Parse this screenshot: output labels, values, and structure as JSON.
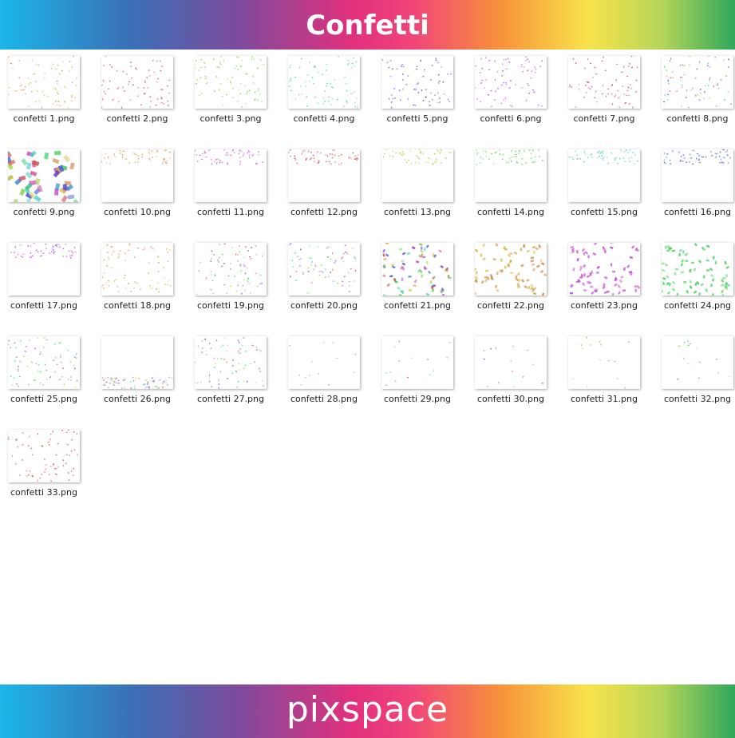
{
  "header": {
    "title": "Confetti"
  },
  "files": [
    "confetti 1.png",
    "confetti 2.png",
    "confetti 3.png",
    "confetti 4.png",
    "confetti 5.png",
    "confetti 6.png",
    "confetti 7.png",
    "confetti 8.png",
    "confetti 9.png",
    "confetti 10.png",
    "confetti 11.png",
    "confetti 12.png",
    "confetti 13.png",
    "confetti 14.png",
    "confetti 15.png",
    "confetti 16.png",
    "confetti 17.png",
    "confetti 18.png",
    "confetti 19.png",
    "confetti 20.png",
    "confetti 21.png",
    "confetti 22.png",
    "confetti 23.png",
    "confetti 24.png",
    "confetti 25.png",
    "confetti 26.png",
    "confetti 27.png",
    "confetti 28.png",
    "confetti 29.png",
    "confetti 30.png",
    "confetti 31.png",
    "confetti 32.png",
    "confetti 33.png"
  ],
  "footer": {
    "brand": "pixspace"
  }
}
